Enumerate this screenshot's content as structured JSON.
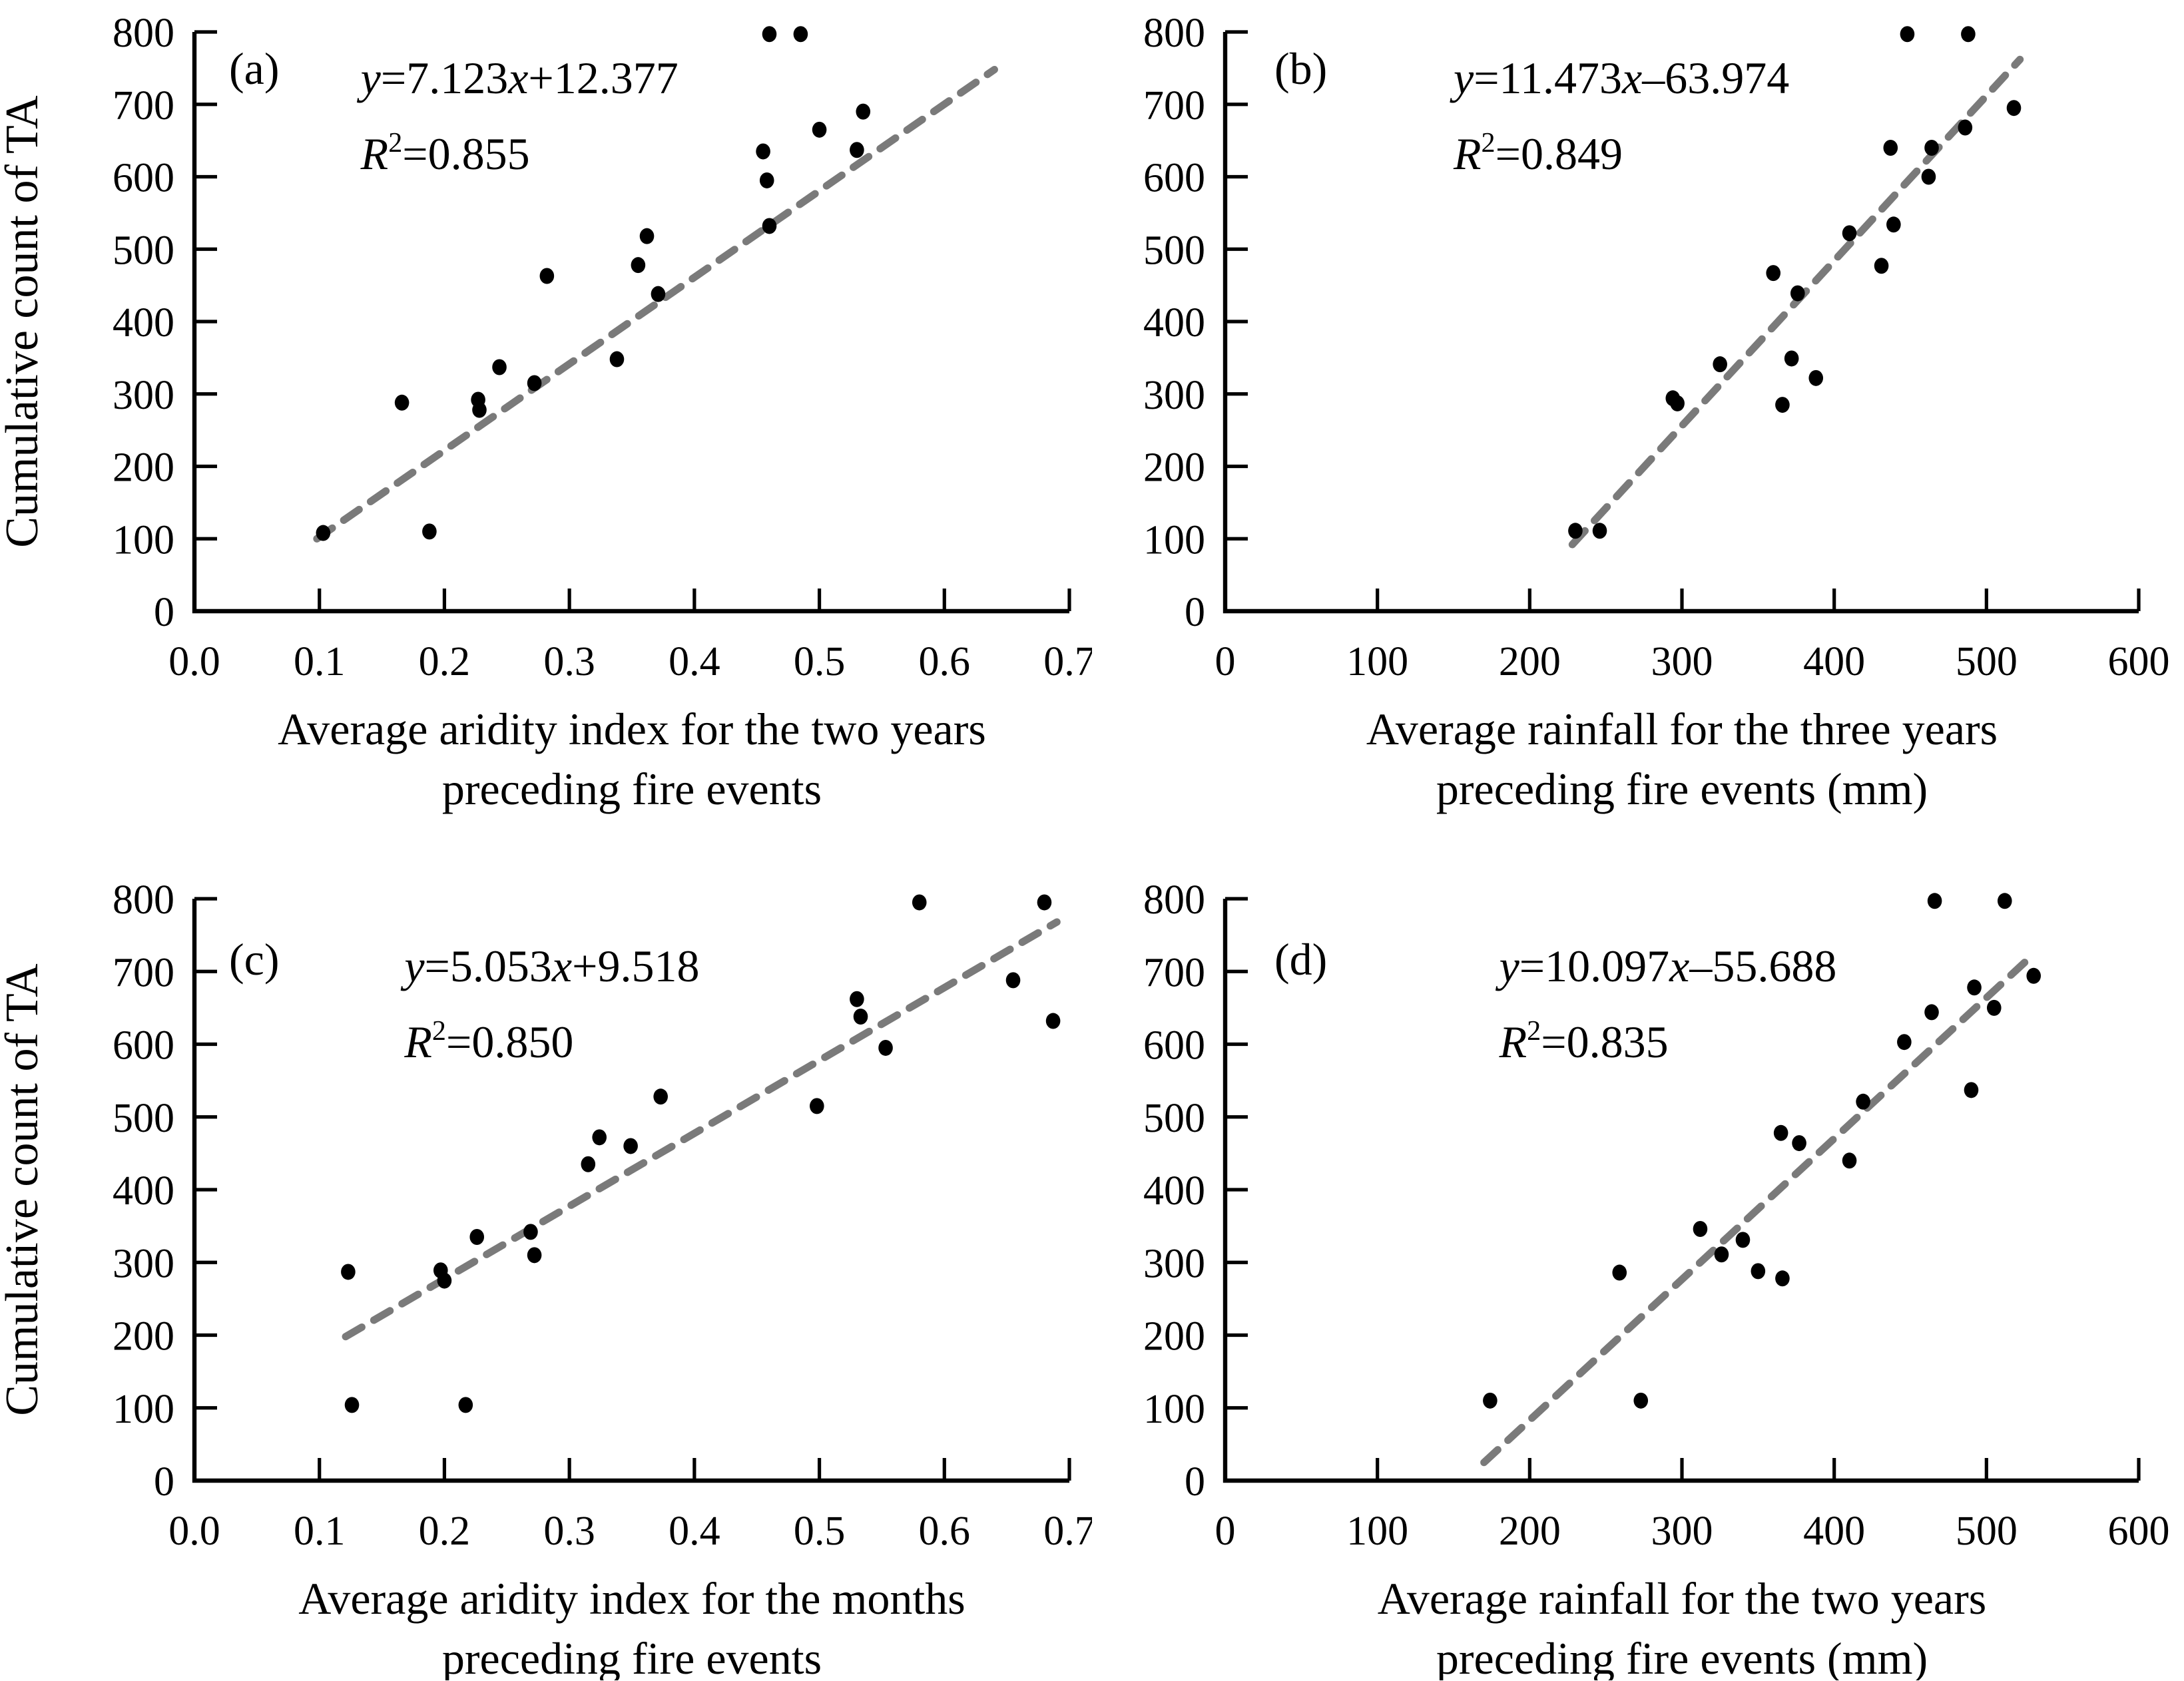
{
  "figure": {
    "background": "#ffffff",
    "shared_ylabel": "Cumulative count of TA",
    "colors": {
      "axis": "#000000",
      "marker": "#000000",
      "trendline": "#7a7a7a",
      "text": "#000000"
    }
  },
  "chart_data": [
    {
      "type": "scatter",
      "panel_label": "(a)",
      "equation": "y=7.123x+12.377",
      "r_squared": "R²=0.855",
      "xlabel_line1": "Average aridity index for the two years",
      "xlabel_line2": "preceding fire events",
      "ylabel": "Cumulative count of TA",
      "show_ylabel": true,
      "xlim": [
        0.0,
        0.7
      ],
      "ylim": [
        0,
        800
      ],
      "xticks": [
        "0.0",
        "0.1",
        "0.2",
        "0.3",
        "0.4",
        "0.5",
        "0.6",
        "0.7"
      ],
      "yticks": [
        "0",
        "100",
        "200",
        "300",
        "400",
        "500",
        "600",
        "700",
        "800"
      ],
      "grid": false,
      "legend": "none",
      "points": [
        [
          0.103,
          108
        ],
        [
          0.166,
          288
        ],
        [
          0.188,
          110
        ],
        [
          0.227,
          292
        ],
        [
          0.228,
          278
        ],
        [
          0.244,
          337
        ],
        [
          0.272,
          315
        ],
        [
          0.282,
          463
        ],
        [
          0.338,
          348
        ],
        [
          0.355,
          478
        ],
        [
          0.362,
          518
        ],
        [
          0.371,
          438
        ],
        [
          0.455,
          635
        ],
        [
          0.458,
          595
        ],
        [
          0.46,
          532
        ],
        [
          0.46,
          797
        ],
        [
          0.485,
          797
        ],
        [
          0.5,
          665
        ],
        [
          0.53,
          637
        ],
        [
          0.535,
          690
        ]
      ],
      "trendline": {
        "x1": 0.098,
        "y1": 100,
        "x2": 0.64,
        "y2": 748,
        "style": "dashed"
      }
    },
    {
      "type": "scatter",
      "panel_label": "(b)",
      "equation": "y=11.473x–63.974",
      "r_squared": "R²=0.849",
      "xlabel_line1": "Average rainfall for the three years",
      "xlabel_line2": "preceding fire events (mm)",
      "ylabel": "",
      "show_ylabel": false,
      "xlim": [
        0,
        600
      ],
      "ylim": [
        0,
        800
      ],
      "xticks": [
        "0",
        "100",
        "200",
        "300",
        "400",
        "500",
        "600"
      ],
      "yticks": [
        "0",
        "100",
        "200",
        "300",
        "400",
        "500",
        "600",
        "700",
        "800"
      ],
      "grid": false,
      "legend": "none",
      "points": [
        [
          230,
          111
        ],
        [
          246,
          111
        ],
        [
          294,
          294
        ],
        [
          297,
          287
        ],
        [
          325,
          341
        ],
        [
          360,
          467
        ],
        [
          366,
          285
        ],
        [
          372,
          349
        ],
        [
          376,
          439
        ],
        [
          388,
          322
        ],
        [
          410,
          522
        ],
        [
          431,
          477
        ],
        [
          437,
          640
        ],
        [
          439,
          534
        ],
        [
          448,
          797
        ],
        [
          462,
          600
        ],
        [
          464,
          640
        ],
        [
          486,
          668
        ],
        [
          488,
          797
        ],
        [
          518,
          695
        ]
      ],
      "trendline": {
        "x1": 228,
        "y1": 92,
        "x2": 522,
        "y2": 762,
        "style": "dashed"
      }
    },
    {
      "type": "scatter",
      "panel_label": "(c)",
      "equation": "y=5.053x+9.518",
      "r_squared": "R²=0.850",
      "xlabel_line1": "Average aridity index for the months",
      "xlabel_line2": "preceding fire events",
      "ylabel": "Cumulative count of TA",
      "show_ylabel": true,
      "xlim": [
        0.0,
        0.7
      ],
      "ylim": [
        0,
        800
      ],
      "xticks": [
        "0.0",
        "0.1",
        "0.2",
        "0.3",
        "0.4",
        "0.5",
        "0.6",
        "0.7"
      ],
      "yticks": [
        "0",
        "100",
        "200",
        "300",
        "400",
        "500",
        "600",
        "700",
        "800"
      ],
      "grid": false,
      "legend": "none",
      "points": [
        [
          0.123,
          287
        ],
        [
          0.126,
          104
        ],
        [
          0.197,
          289
        ],
        [
          0.2,
          275
        ],
        [
          0.217,
          104
        ],
        [
          0.226,
          335
        ],
        [
          0.269,
          342
        ],
        [
          0.272,
          310
        ],
        [
          0.315,
          435
        ],
        [
          0.324,
          472
        ],
        [
          0.349,
          460
        ],
        [
          0.373,
          528
        ],
        [
          0.498,
          515
        ],
        [
          0.53,
          662
        ],
        [
          0.533,
          638
        ],
        [
          0.553,
          595
        ],
        [
          0.58,
          795
        ],
        [
          0.655,
          688
        ],
        [
          0.68,
          795
        ],
        [
          0.687,
          632
        ]
      ],
      "trendline": {
        "x1": 0.121,
        "y1": 198,
        "x2": 0.69,
        "y2": 768,
        "style": "dashed"
      }
    },
    {
      "type": "scatter",
      "panel_label": "(d)",
      "equation": "y=10.097x–55.688",
      "r_squared": "R²=0.835",
      "xlabel_line1": "Average rainfall for the two years",
      "xlabel_line2": "preceding fire events (mm)",
      "ylabel": "",
      "show_ylabel": false,
      "xlim": [
        0,
        600
      ],
      "ylim": [
        0,
        800
      ],
      "xticks": [
        "0",
        "100",
        "200",
        "300",
        "400",
        "500",
        "600"
      ],
      "yticks": [
        "0",
        "100",
        "200",
        "300",
        "400",
        "500",
        "600",
        "700",
        "800"
      ],
      "grid": false,
      "legend": "none",
      "points": [
        [
          174,
          110
        ],
        [
          259,
          286
        ],
        [
          273,
          110
        ],
        [
          312,
          346
        ],
        [
          326,
          311
        ],
        [
          340,
          331
        ],
        [
          350,
          288
        ],
        [
          365,
          478
        ],
        [
          366,
          278
        ],
        [
          377,
          464
        ],
        [
          410,
          440
        ],
        [
          419,
          521
        ],
        [
          446,
          603
        ],
        [
          464,
          644
        ],
        [
          466,
          797
        ],
        [
          490,
          537
        ],
        [
          492,
          678
        ],
        [
          505,
          650
        ],
        [
          512,
          797
        ],
        [
          531,
          694
        ]
      ],
      "trendline": {
        "x1": 170,
        "y1": 25,
        "x2": 530,
        "y2": 722,
        "style": "dashed"
      }
    }
  ]
}
